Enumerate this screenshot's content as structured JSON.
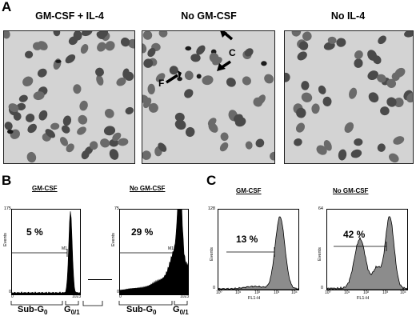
{
  "panel_a": {
    "letter": "A",
    "columns": [
      {
        "title": "GM-CSF + IL-4"
      },
      {
        "title": "No GM-CSF"
      },
      {
        "title": "No IL-4"
      }
    ],
    "arrow_labels": [
      "C",
      "F"
    ]
  },
  "panel_b": {
    "letter": "B",
    "left": {
      "title": "GM-CSF",
      "percent": "5 %",
      "ymax": "175",
      "y0": "0",
      "xmin": "0",
      "xmax": "1023",
      "gate": "M1",
      "yaxis": "Events"
    },
    "right": {
      "title": "No GM-CSF",
      "percent": "29 %",
      "ymax": "75",
      "y0": "0",
      "xmin": "0",
      "xmax": "1023",
      "gate": "M1",
      "yaxis": "Events"
    },
    "phase_sub": "Sub-G",
    "phase_sub_sub": "0",
    "phase_g": "G",
    "phase_g_sub": "0/1"
  },
  "panel_c": {
    "letter": "C",
    "left": {
      "title": "GM-CSF",
      "percent": "13 %",
      "ymax": "128",
      "y0": "0",
      "yaxis": "Events",
      "xaxis": "FL1-H"
    },
    "right": {
      "title": "No GM-CSF",
      "percent": "42 %",
      "ymax": "64",
      "y0": "0",
      "yaxis": "Events",
      "xaxis": "FL1-H"
    },
    "xticks": [
      "10⁰",
      "10¹",
      "10²",
      "10³",
      "10⁴"
    ]
  }
}
